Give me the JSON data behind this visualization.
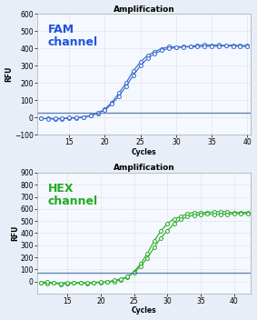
{
  "title": "Amplification",
  "fam_label": "FAM\nchannel",
  "fam_label_color": "#2255dd",
  "fam_color": "#3366cc",
  "fam_ylim": [
    -100,
    600
  ],
  "fam_yticks": [
    -100,
    0,
    100,
    200,
    300,
    400,
    500,
    600
  ],
  "fam_threshold": 30,
  "fam_xlim": [
    10.5,
    40.5
  ],
  "fam_xticks": [
    15,
    20,
    25,
    30,
    35,
    40
  ],
  "hex_label": "HEX\nchannel",
  "hex_label_color": "#22aa22",
  "hex_color": "#22aa22",
  "hex_ylim": [
    -100,
    900
  ],
  "hex_yticks": [
    0,
    100,
    200,
    300,
    400,
    500,
    600,
    700,
    800,
    900
  ],
  "hex_threshold": 75,
  "hex_xlim": [
    10.5,
    42.5
  ],
  "hex_xticks": [
    15,
    20,
    25,
    30,
    35,
    40
  ],
  "xlabel": "Cycles",
  "ylabel": "RFU",
  "background_color": "#f5f8ff",
  "grid_color": "#cccccc",
  "title_fontsize": 6.5,
  "axis_fontsize": 5.5,
  "channel_fontsize": 9
}
